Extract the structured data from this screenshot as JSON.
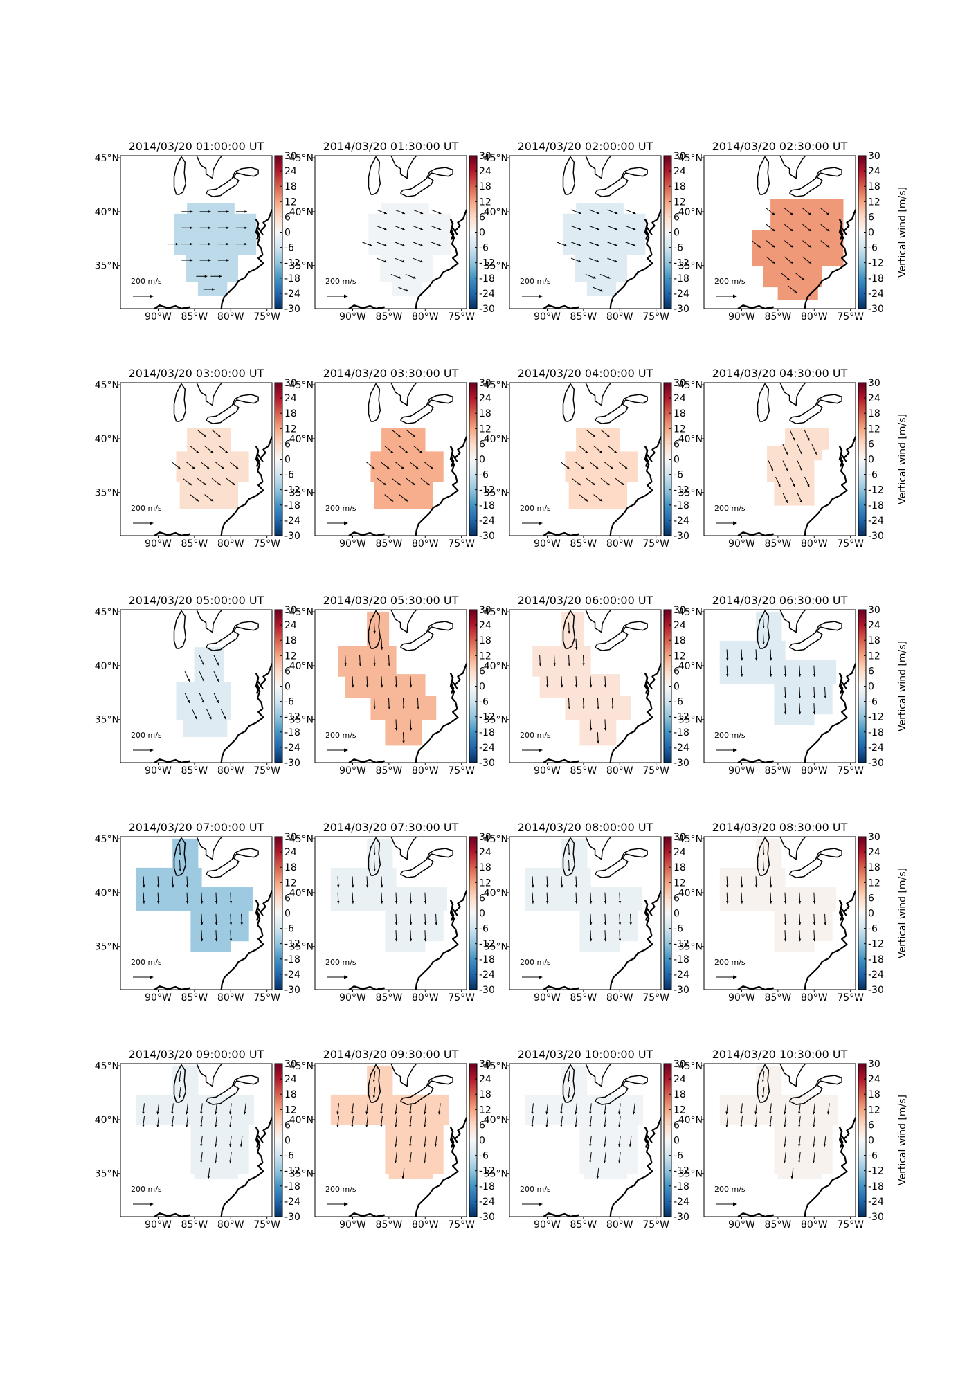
{
  "figure": {
    "lat_ticks": [
      "35°N",
      "40°N",
      "45°N"
    ],
    "lon_ticks": [
      "90°W",
      "85°W",
      "80°W",
      "75°W"
    ],
    "colorbar_ticks": [
      "30",
      "24",
      "18",
      "12",
      "6",
      "0",
      "-6",
      "-12",
      "-18",
      "-24",
      "-30"
    ],
    "colorbar_label": "Vertical wind [m/s]",
    "colorbar_range": [
      -30,
      30
    ],
    "scale_arrow_label": "200 m/s"
  },
  "chart_data": {
    "type": "heatmap",
    "description_variable": "Vertical wind [m/s] with horizontal wind vectors",
    "colormap": "RdBu_r",
    "vmin": -30,
    "vmax": 30,
    "panels": [
      {
        "title": "2014/03/20 01:00:00 UT",
        "vertical_wind": -8,
        "coverage": "A",
        "wind_dir": "E"
      },
      {
        "title": "2014/03/20 01:30:00 UT",
        "vertical_wind": -1,
        "coverage": "A",
        "wind_dir": "ESE"
      },
      {
        "title": "2014/03/20 02:00:00 UT",
        "vertical_wind": -4,
        "coverage": "A",
        "wind_dir": "ESE"
      },
      {
        "title": "2014/03/20 02:30:00 UT",
        "vertical_wind": 13,
        "coverage": "A2",
        "wind_dir": "SE"
      },
      {
        "title": "2014/03/20 03:00:00 UT",
        "vertical_wind": 5,
        "coverage": "B",
        "wind_dir": "SE"
      },
      {
        "title": "2014/03/20 03:30:00 UT",
        "vertical_wind": 11,
        "coverage": "B",
        "wind_dir": "SE"
      },
      {
        "title": "2014/03/20 04:00:00 UT",
        "vertical_wind": 6,
        "coverage": "B",
        "wind_dir": "SE"
      },
      {
        "title": "2014/03/20 04:30:00 UT",
        "vertical_wind": 5,
        "coverage": "C",
        "wind_dir": "SSE"
      },
      {
        "title": "2014/03/20 05:00:00 UT",
        "vertical_wind": -4,
        "coverage": "D",
        "wind_dir": "SSE"
      },
      {
        "title": "2014/03/20 05:30:00 UT",
        "vertical_wind": 10,
        "coverage": "E",
        "wind_dir": "S"
      },
      {
        "title": "2014/03/20 06:00:00 UT",
        "vertical_wind": 4,
        "coverage": "E",
        "wind_dir": "S"
      },
      {
        "title": "2014/03/20 06:30:00 UT",
        "vertical_wind": -4,
        "coverage": "F",
        "wind_dir": "S"
      },
      {
        "title": "2014/03/20 07:00:00 UT",
        "vertical_wind": -11,
        "coverage": "F",
        "wind_dir": "S"
      },
      {
        "title": "2014/03/20 07:30:00 UT",
        "vertical_wind": -2,
        "coverage": "F",
        "wind_dir": "S"
      },
      {
        "title": "2014/03/20 08:00:00 UT",
        "vertical_wind": -2,
        "coverage": "F",
        "wind_dir": "S"
      },
      {
        "title": "2014/03/20 08:30:00 UT",
        "vertical_wind": 1,
        "coverage": "F",
        "wind_dir": "S"
      },
      {
        "title": "2014/03/20 09:00:00 UT",
        "vertical_wind": -2,
        "coverage": "G",
        "wind_dir": "SSW"
      },
      {
        "title": "2014/03/20 09:30:00 UT",
        "vertical_wind": 7,
        "coverage": "G",
        "wind_dir": "SSW"
      },
      {
        "title": "2014/03/20 10:00:00 UT",
        "vertical_wind": -1,
        "coverage": "G",
        "wind_dir": "SSW"
      },
      {
        "title": "2014/03/20 10:30:00 UT",
        "vertical_wind": 1,
        "coverage": "G",
        "wind_dir": "SSW"
      }
    ]
  }
}
